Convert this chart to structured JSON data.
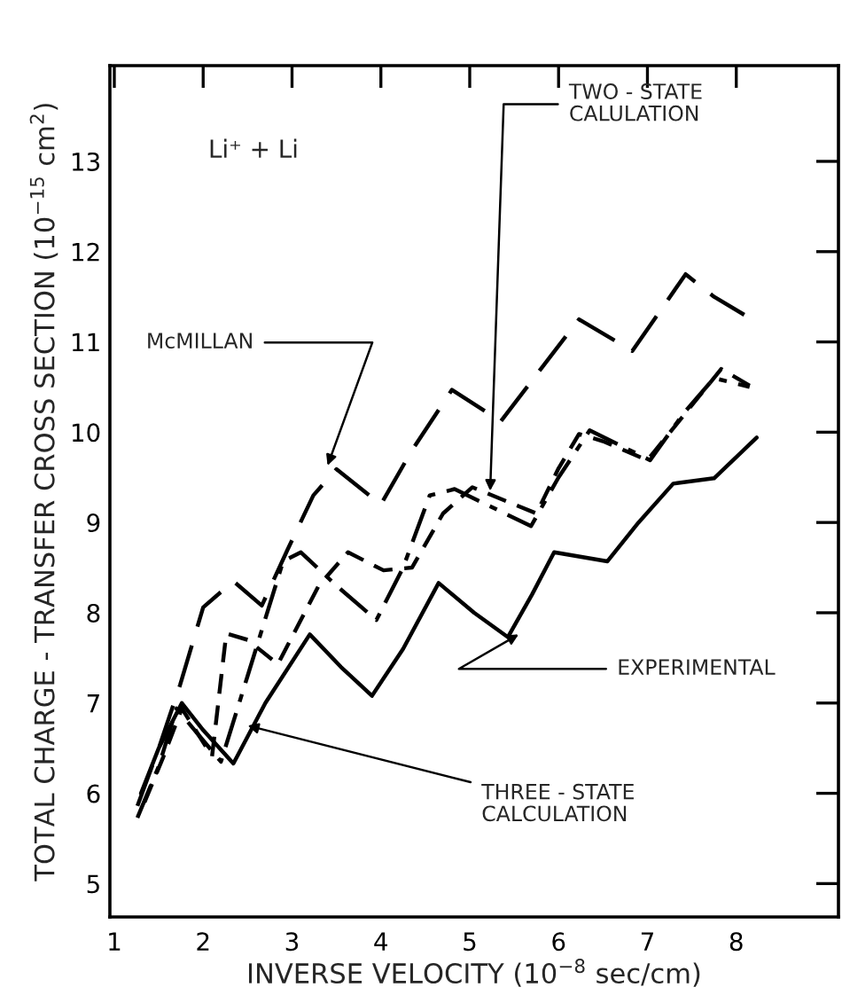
{
  "chart_data": {
    "type": "line",
    "xlabel": "INVERSE VELOCITY (10$^{−8}$ sec/cm)",
    "ylabel": "TOTAL CHARGE - TRANSFER CROSS SECTION (10$^{−15}$ cm$^{2}$)",
    "xlim": [
      0.95,
      9.15
    ],
    "ylim": [
      4.63,
      14.06
    ],
    "xticks": [
      1,
      2,
      3,
      4,
      5,
      6,
      7,
      8
    ],
    "yticks": [
      5,
      6,
      7,
      8,
      9,
      10,
      11,
      12,
      13
    ],
    "grid": false,
    "legend": false,
    "marker": "none",
    "series": [
      {
        "color": "#000000",
        "line_style": "solid",
        "x": [
          1.3,
          1.5,
          1.76,
          2.0,
          2.34,
          2.7,
          3.2,
          3.55,
          3.9,
          4.25,
          4.65,
          5.05,
          5.43,
          5.7,
          5.95,
          6.55,
          6.9,
          7.29,
          7.75,
          8.23
        ],
        "values": [
          6.0,
          6.5,
          7.0,
          6.7,
          6.33,
          7.0,
          7.76,
          7.4,
          7.08,
          7.6,
          8.33,
          8.0,
          7.73,
          8.2,
          8.67,
          8.57,
          9.0,
          9.43,
          9.49,
          9.94
        ]
      },
      {
        "color": "#000000",
        "line_style": "longdash",
        "x": [
          1.26,
          1.5,
          1.74,
          2.0,
          2.34,
          2.66,
          2.95,
          3.24,
          3.5,
          4.0,
          4.35,
          4.8,
          5.35,
          5.8,
          6.23,
          6.83,
          7.43,
          7.75,
          8.09
        ],
        "values": [
          5.86,
          6.5,
          7.2,
          8.06,
          8.35,
          8.08,
          8.7,
          9.3,
          9.59,
          9.2,
          9.8,
          10.47,
          10.12,
          10.7,
          11.25,
          10.9,
          11.75,
          11.5,
          11.3
        ]
      },
      {
        "color": "#000000",
        "line_style": "dashed",
        "x": [
          1.34,
          1.55,
          1.76,
          2.1,
          2.26,
          2.5,
          2.84,
          3.3,
          3.63,
          4.03,
          4.35,
          4.7,
          5.03,
          5.75,
          6.0,
          6.23,
          6.5,
          7.0,
          7.83,
          8.23
        ],
        "values": [
          5.9,
          6.4,
          6.94,
          6.41,
          7.77,
          7.7,
          7.43,
          8.3,
          8.67,
          8.47,
          8.5,
          9.1,
          9.39,
          9.1,
          9.6,
          9.98,
          9.9,
          9.69,
          10.7,
          10.47
        ]
      },
      {
        "color": "#000000",
        "line_style": "dashdot",
        "x": [
          1.26,
          1.5,
          1.7,
          2.2,
          2.5,
          2.9,
          3.1,
          3.5,
          3.95,
          4.25,
          4.55,
          4.83,
          5.69,
          6.0,
          6.35,
          7.03,
          7.4,
          7.75,
          8.15
        ],
        "values": [
          5.73,
          6.3,
          6.94,
          6.35,
          7.3,
          8.57,
          8.67,
          8.3,
          7.92,
          8.5,
          9.3,
          9.37,
          8.96,
          9.5,
          10.02,
          9.69,
          10.2,
          10.6,
          10.5
        ]
      }
    ],
    "annotations": [
      "Li⁺ + Li",
      {
        "text": "McMILLAN",
        "x": 3.4,
        "y": 9.63
      },
      {
        "text": "TWO - STATE\nCALULATION",
        "x": 5.23,
        "y": 9.35
      },
      {
        "text": "EXPERIMENTAL",
        "x": 5.55,
        "y": 7.76
      },
      {
        "text": "THREE - STATE\nCALCULATION",
        "x": 2.5,
        "y": 6.75
      }
    ]
  }
}
